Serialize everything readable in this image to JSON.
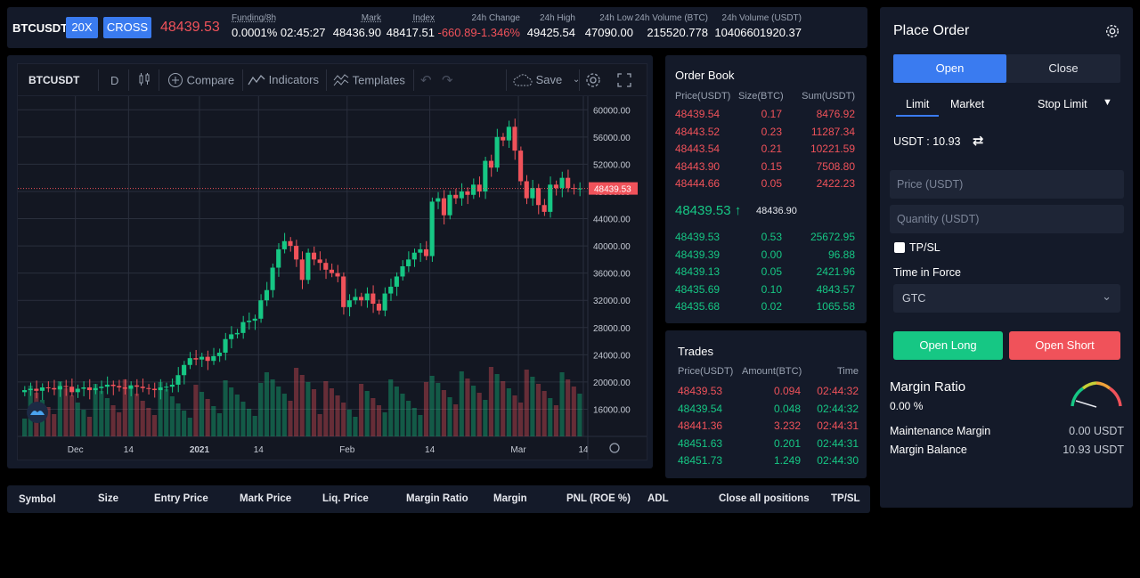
{
  "ticker": {
    "symbol": "BTCUSDT",
    "leverage": "20X",
    "margin_mode": "CROSS",
    "last_price": "48439.53",
    "funding_label": "Funding/8h",
    "funding_value": "0.0001% 02:45:27",
    "mark_label": "Mark",
    "mark_value": "48436.90",
    "index_label": "Index",
    "index_value": "48417.51",
    "change_label": "24h Change",
    "change_value": "-660.89-1.346%",
    "high_label": "24h High",
    "high_value": "49425.54",
    "low_label": "24h Low",
    "low_value": "47090.00",
    "vol_btc_label": "24h Volume (BTC)",
    "vol_btc_value": "215520.778",
    "vol_usdt_label": "24h Volume (USDT)",
    "vol_usdt_value": "10406601920.37"
  },
  "chart_toolbar": {
    "symbol": "BTCUSDT",
    "interval": "D",
    "compare": "Compare",
    "indicators": "Indicators",
    "templates": "Templates",
    "save": "Save"
  },
  "chart_data": {
    "type": "candlestick",
    "x_ticks": [
      "Dec",
      "14",
      "2021",
      "14",
      "Feb",
      "14",
      "Mar",
      "14"
    ],
    "y_ticks": [
      "60000.00",
      "56000.00",
      "52000.00",
      "48000.00",
      "44000.00",
      "40000.00",
      "36000.00",
      "32000.00",
      "28000.00",
      "24000.00",
      "20000.00",
      "16000.00"
    ],
    "ylim": [
      12000,
      62000
    ],
    "last_price_label": "48439.53",
    "last_price": 48439.53,
    "closes": [
      18800,
      19000,
      18700,
      19200,
      19100,
      18900,
      19400,
      19300,
      18500,
      19000,
      19200,
      18800,
      19100,
      19300,
      19600,
      19400,
      19200,
      19000,
      19500,
      19300,
      19100,
      19000,
      18800,
      19200,
      19300,
      19600,
      21000,
      22500,
      23500,
      23300,
      23700,
      23100,
      23800,
      24300,
      26300,
      27000,
      27200,
      28800,
      29000,
      29300,
      32000,
      33500,
      36800,
      39500,
      40700,
      40000,
      38000,
      35000,
      39000,
      38000,
      37500,
      36500,
      36000,
      35500,
      31000,
      32000,
      32500,
      32000,
      33000,
      31500,
      30500,
      33000,
      34000,
      35500,
      37000,
      38000,
      39000,
      39500,
      38500,
      46500,
      47000,
      44500,
      47500,
      47000,
      48000,
      47500,
      49000,
      48000,
      52500,
      51500,
      56000,
      55500,
      57500,
      54000,
      49500,
      47000,
      48500,
      46000,
      45000,
      49000,
      48500,
      50000,
      48500,
      48400,
      48439
    ]
  },
  "order_book": {
    "title": "Order Book",
    "headers": [
      "Price(USDT)",
      "Size(BTC)",
      "Sum(USDT)"
    ],
    "asks": [
      [
        "48439.54",
        "0.17",
        "8476.92"
      ],
      [
        "48443.52",
        "0.23",
        "11287.34"
      ],
      [
        "48443.54",
        "0.21",
        "10221.59"
      ],
      [
        "48443.90",
        "0.15",
        "7508.80"
      ],
      [
        "48444.66",
        "0.05",
        "2422.23"
      ]
    ],
    "mid_price": "48439.53",
    "mid_mark": "48436.90",
    "bids": [
      [
        "48439.53",
        "0.53",
        "25672.95"
      ],
      [
        "48439.39",
        "0.00",
        "96.88"
      ],
      [
        "48439.13",
        "0.05",
        "2421.96"
      ],
      [
        "48435.69",
        "0.10",
        "4843.57"
      ],
      [
        "48435.68",
        "0.02",
        "1065.58"
      ]
    ]
  },
  "trades": {
    "title": "Trades",
    "headers": [
      "Price(USDT)",
      "Amount(BTC)",
      "Time"
    ],
    "rows": [
      {
        "price": "48439.53",
        "amount": "0.094",
        "time": "02:44:32",
        "side": "sell"
      },
      {
        "price": "48439.54",
        "amount": "0.048",
        "time": "02:44:32",
        "side": "buy"
      },
      {
        "price": "48441.36",
        "amount": "3.232",
        "time": "02:44:31",
        "side": "sell"
      },
      {
        "price": "48451.63",
        "amount": "0.201",
        "time": "02:44:31",
        "side": "buy"
      },
      {
        "price": "48451.73",
        "amount": "1.249",
        "time": "02:44:30",
        "side": "buy"
      }
    ]
  },
  "order_form": {
    "title": "Place Order",
    "open_tab": "Open",
    "close_tab": "Close",
    "limit": "Limit",
    "market": "Market",
    "stop_limit": "Stop Limit",
    "balance": "USDT : 10.93",
    "price_placeholder": "Price (USDT)",
    "quantity_placeholder": "Quantity (USDT)",
    "tpsl": "TP/SL",
    "time_in_force_label": "Time in Force",
    "time_in_force_value": "GTC",
    "open_long": "Open Long",
    "open_short": "Open Short",
    "margin_ratio_label": "Margin Ratio",
    "margin_ratio_value": "0.00 %",
    "maintenance_margin_label": "Maintenance Margin",
    "maintenance_margin_value": "0.00 USDT",
    "margin_balance_label": "Margin Balance",
    "margin_balance_value": "10.93 USDT"
  },
  "positions": {
    "columns": [
      "Symbol",
      "Size",
      "Entry Price",
      "Mark Price",
      "Liq. Price",
      "Margin Ratio",
      "Margin",
      "PNL (ROE %)",
      "ADL",
      "Close all positions",
      "TP/SL"
    ]
  },
  "colors": {
    "up": "#16c784",
    "down": "#f0525a",
    "accent": "#3a7bf0",
    "panel": "#141a29"
  }
}
